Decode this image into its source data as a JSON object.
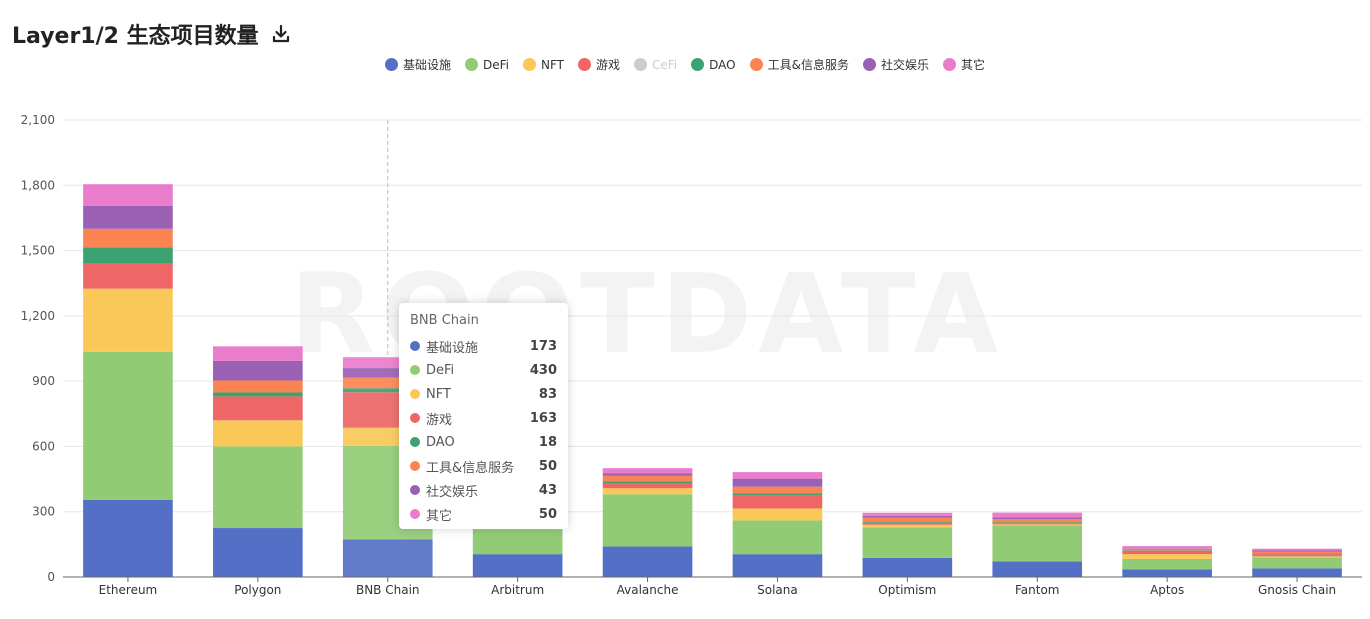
{
  "header": {
    "title": "Layer1/2 生态项目数量",
    "download_icon": "download-icon"
  },
  "watermark": "ROOTDATA",
  "legend": [
    {
      "name": "基础设施",
      "color": "#5470c6",
      "active": true
    },
    {
      "name": "DeFi",
      "color": "#91cc75",
      "active": true
    },
    {
      "name": "NFT",
      "color": "#fac858",
      "active": true
    },
    {
      "name": "游戏",
      "color": "#ee6666",
      "active": true
    },
    {
      "name": "CeFi",
      "color": "#cccccc",
      "active": false
    },
    {
      "name": "DAO",
      "color": "#3ba272",
      "active": true
    },
    {
      "name": "工具&信息服务",
      "color": "#fc8452",
      "active": true
    },
    {
      "name": "社交娱乐",
      "color": "#9a60b4",
      "active": true
    },
    {
      "name": "其它",
      "color": "#ea7ccc",
      "active": true
    }
  ],
  "chart_data": {
    "type": "bar",
    "stacked": true,
    "categories": [
      "Ethereum",
      "Polygon",
      "BNB Chain",
      "Arbitrum",
      "Avalanche",
      "Solana",
      "Optimism",
      "Fantom",
      "Aptos",
      "Gnosis Chain"
    ],
    "ylim": [
      0,
      2100
    ],
    "yticks": [
      "0",
      "300",
      "600",
      "900",
      "1,200",
      "1,500",
      "1,800",
      "2,100"
    ],
    "ytick_values": [
      0,
      300,
      600,
      900,
      1200,
      1500,
      1800,
      2100
    ],
    "grid": true,
    "legend_position": "top-center",
    "series": [
      {
        "name": "基础设施",
        "color": "#5470c6",
        "values": [
          355,
          225,
          173,
          105,
          140,
          105,
          88,
          72,
          35,
          40
        ]
      },
      {
        "name": "DeFi",
        "color": "#91cc75",
        "values": [
          680,
          375,
          430,
          115,
          240,
          155,
          140,
          165,
          48,
          50
        ]
      },
      {
        "name": "NFT",
        "color": "#fac858",
        "values": [
          290,
          120,
          83,
          25,
          28,
          55,
          12,
          5,
          22,
          5
        ]
      },
      {
        "name": "游戏",
        "color": "#ee6666",
        "values": [
          115,
          110,
          163,
          30,
          22,
          60,
          8,
          5,
          15,
          10
        ]
      },
      {
        "name": "DAO",
        "color": "#3ba272",
        "values": [
          75,
          18,
          18,
          8,
          10,
          10,
          4,
          4,
          2,
          4
        ]
      },
      {
        "name": "工具&信息服务",
        "color": "#fc8452",
        "values": [
          85,
          55,
          50,
          20,
          25,
          30,
          20,
          15,
          5,
          8
        ]
      },
      {
        "name": "社交娱乐",
        "color": "#9a60b4",
        "values": [
          105,
          90,
          43,
          15,
          12,
          37,
          8,
          8,
          3,
          5
        ]
      },
      {
        "name": "其它",
        "color": "#ea7ccc",
        "values": [
          100,
          67,
          50,
          17,
          23,
          30,
          15,
          22,
          12,
          8
        ]
      }
    ]
  },
  "tooltip": {
    "title": "BNB Chain",
    "rows": [
      {
        "label": "基础设施",
        "value": "173",
        "color": "#5470c6"
      },
      {
        "label": "DeFi",
        "value": "430",
        "color": "#91cc75"
      },
      {
        "label": "NFT",
        "value": "83",
        "color": "#fac858"
      },
      {
        "label": "游戏",
        "value": "163",
        "color": "#ee6666"
      },
      {
        "label": "DAO",
        "value": "18",
        "color": "#3ba272"
      },
      {
        "label": "工具&信息服务",
        "value": "50",
        "color": "#fc8452"
      },
      {
        "label": "社交娱乐",
        "value": "43",
        "color": "#9a60b4"
      },
      {
        "label": "其它",
        "value": "50",
        "color": "#ea7ccc"
      }
    ]
  }
}
